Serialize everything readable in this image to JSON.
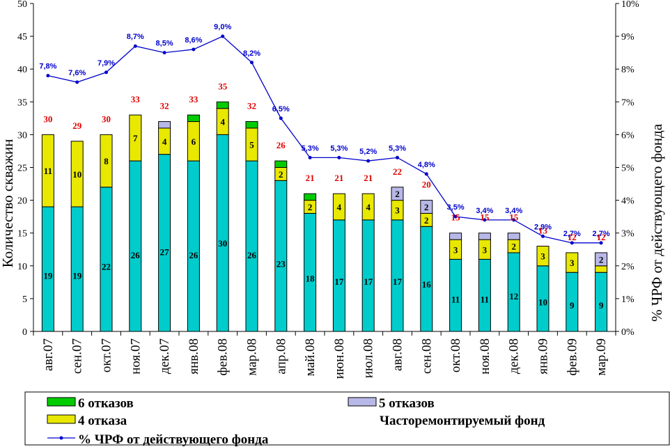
{
  "chart_data": {
    "type": "bar",
    "stacked": true,
    "categories": [
      "авг.07",
      "сен.07",
      "окт.07",
      "ноя.07",
      "дек.07",
      "янв.08",
      "фев.08",
      "мар.08",
      "апр.08",
      "май.08",
      "июн.08",
      "июл.08",
      "авг.08",
      "сен.08",
      "окт.08",
      "ноя.08",
      "дек.08",
      "янв.09",
      "фев.09",
      "мар.09"
    ],
    "ylabel": "Количество скважин",
    "y2label": "% ЧРФ от действующего фонда",
    "ylim": [
      0,
      50
    ],
    "y2lim": [
      0,
      10
    ],
    "yticks": [
      "0",
      "5",
      "10",
      "15",
      "20",
      "25",
      "30",
      "35",
      "40",
      "45",
      "50"
    ],
    "y2ticks": [
      "0%",
      "1%",
      "2%",
      "3%",
      "4%",
      "5%",
      "6%",
      "7%",
      "8%",
      "9%",
      "10%"
    ],
    "series": [
      {
        "name": "Часторемонтируемый фонд",
        "color": "#00cccc",
        "values": [
          19,
          19,
          22,
          26,
          27,
          26,
          30,
          26,
          23,
          18,
          17,
          17,
          17,
          16,
          11,
          11,
          12,
          10,
          9,
          9
        ],
        "labels": [
          "19",
          "19",
          "22",
          "26",
          "27",
          "26",
          "30",
          "26",
          "23",
          "18",
          "17",
          "17",
          "17",
          "16",
          "11",
          "11",
          "12",
          "10",
          "9",
          "9"
        ]
      },
      {
        "name": "4 отказа",
        "color": "#e8e800",
        "values": [
          11,
          10,
          8,
          7,
          4,
          6,
          4,
          5,
          2,
          2,
          4,
          4,
          3,
          2,
          3,
          3,
          2,
          3,
          3,
          1
        ],
        "labels": [
          "11",
          "10",
          "8",
          "7",
          "4",
          "6",
          "4",
          "5",
          "2",
          "2",
          "4",
          "4",
          "3",
          "2",
          "3",
          "3",
          "2",
          "3",
          "3",
          ""
        ]
      },
      {
        "name": "5 отказов",
        "color": "#b8b8e8",
        "values": [
          0,
          0,
          0,
          0,
          1,
          0,
          0,
          0,
          0,
          0,
          0,
          0,
          2,
          2,
          1,
          1,
          1,
          0,
          0,
          2
        ],
        "labels": [
          "",
          "",
          "",
          "",
          "",
          "",
          "",
          "",
          "",
          "",
          "",
          "",
          "2",
          "2",
          "",
          "",
          "",
          "",
          "",
          "2"
        ]
      },
      {
        "name": "6 отказов",
        "color": "#00cc00",
        "values": [
          0,
          0,
          0,
          0,
          0,
          1,
          1,
          1,
          1,
          1,
          0,
          0,
          0,
          0,
          0,
          0,
          0,
          0,
          0,
          0
        ],
        "labels": [
          "",
          "",
          "",
          "",
          "",
          "",
          "",
          "",
          "",
          "",
          "",
          "",
          "",
          "",
          "",
          "",
          "",
          "",
          "",
          ""
        ]
      }
    ],
    "totals": [
      "30",
      "29",
      "30",
      "33",
      "32",
      "33",
      "35",
      "32",
      "26",
      "21",
      "21",
      "21",
      "22",
      "20",
      "15",
      "15",
      "15",
      "13",
      "12",
      "12"
    ],
    "line": {
      "name": "% ЧРФ от действующего фонда",
      "color": "#0000cc",
      "values": [
        7.8,
        7.6,
        7.9,
        8.7,
        8.5,
        8.6,
        9.0,
        8.2,
        6.5,
        5.3,
        5.3,
        5.2,
        5.3,
        4.8,
        3.5,
        3.4,
        3.4,
        2.9,
        2.7,
        2.7
      ],
      "labels": [
        "7,8%",
        "7,6%",
        "7,9%",
        "8,7%",
        "8,5%",
        "8,6%",
        "9,0%",
        "8,2%",
        "6,5%",
        "5,3%",
        "5,3%",
        "5,2%",
        "5,3%",
        "4,8%",
        "3,5%",
        "3,4%",
        "3,4%",
        "2,9%",
        "2,7%",
        "2,7%"
      ]
    },
    "legend": {
      "items": [
        "6 отказов",
        "5 отказов",
        "4 отказа",
        "Часторемонтируемый фонд",
        "% ЧРФ от действующего фонда"
      ]
    },
    "grid": false
  }
}
